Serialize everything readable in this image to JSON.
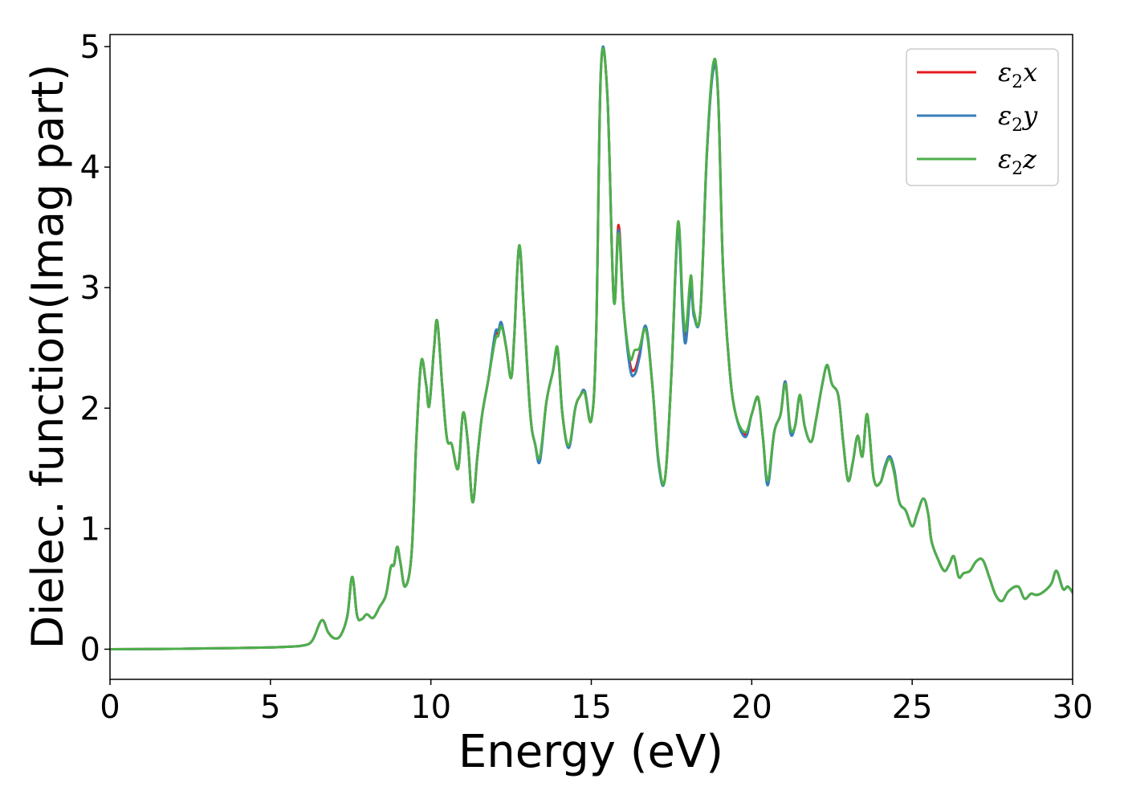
{
  "chart_data": {
    "type": "line",
    "title": "",
    "xlabel": "Energy (eV)",
    "ylabel": "Dielec. function(Imag part)",
    "xlim": [
      0,
      30
    ],
    "ylim": [
      -0.25,
      5.1
    ],
    "xticks": [
      0,
      5,
      10,
      15,
      20,
      25,
      30
    ],
    "xtick_labels": [
      "0",
      "5",
      "10",
      "15",
      "20",
      "25",
      "30"
    ],
    "yticks": [
      0,
      1,
      2,
      3,
      4,
      5
    ],
    "ytick_labels": [
      "0",
      "1",
      "2",
      "3",
      "4",
      "5"
    ],
    "grid": false,
    "legend_position": "top-right",
    "series": [
      {
        "name": "ε2x",
        "legend_base": "ε",
        "legend_sub": "2",
        "legend_tail": "x",
        "color": "#e41a1c",
        "x": [
          0,
          2,
          4,
          5,
          5.5,
          6,
          6.3,
          6.6,
          6.8,
          7.0,
          7.2,
          7.4,
          7.55,
          7.7,
          7.85,
          8.0,
          8.2,
          8.4,
          8.6,
          8.75,
          8.85,
          8.95,
          9.05,
          9.2,
          9.4,
          9.55,
          9.7,
          9.85,
          9.95,
          10.1,
          10.2,
          10.35,
          10.5,
          10.65,
          10.85,
          11.0,
          11.15,
          11.3,
          11.45,
          11.6,
          11.8,
          12.0,
          12.1,
          12.2,
          12.35,
          12.5,
          12.6,
          12.75,
          12.9,
          13.1,
          13.25,
          13.4,
          13.6,
          13.8,
          13.95,
          14.1,
          14.3,
          14.5,
          14.65,
          14.8,
          15.0,
          15.15,
          15.3,
          15.5,
          15.7,
          15.85,
          16.0,
          16.2,
          16.35,
          16.5,
          16.7,
          16.9,
          17.1,
          17.3,
          17.5,
          17.7,
          17.85,
          17.95,
          18.1,
          18.2,
          18.4,
          18.6,
          18.8,
          18.95,
          19.1,
          19.3,
          19.5,
          19.8,
          20.0,
          20.2,
          20.35,
          20.5,
          20.7,
          20.9,
          21.05,
          21.2,
          21.35,
          21.5,
          21.65,
          21.85,
          22.0,
          22.2,
          22.35,
          22.5,
          22.7,
          22.85,
          23.0,
          23.15,
          23.3,
          23.45,
          23.6,
          23.8,
          24.0,
          24.15,
          24.3,
          24.45,
          24.6,
          24.8,
          25.0,
          25.15,
          25.35,
          25.5,
          25.6,
          25.8,
          26.0,
          26.15,
          26.3,
          26.45,
          26.6,
          26.8,
          27.0,
          27.2,
          27.4,
          27.6,
          27.8,
          28.0,
          28.3,
          28.5,
          28.7,
          28.85,
          29.0,
          29.2,
          29.35,
          29.5,
          29.7,
          29.85,
          30.0
        ],
        "y": [
          0,
          0.003,
          0.01,
          0.015,
          0.02,
          0.03,
          0.07,
          0.24,
          0.14,
          0.09,
          0.12,
          0.28,
          0.6,
          0.28,
          0.25,
          0.29,
          0.26,
          0.35,
          0.45,
          0.68,
          0.7,
          0.85,
          0.72,
          0.52,
          0.8,
          1.75,
          2.38,
          2.2,
          2.02,
          2.5,
          2.72,
          2.2,
          1.75,
          1.7,
          1.5,
          1.95,
          1.72,
          1.22,
          1.6,
          1.95,
          2.25,
          2.6,
          2.62,
          2.7,
          2.5,
          2.25,
          2.6,
          3.34,
          2.8,
          1.95,
          1.7,
          1.58,
          2.05,
          2.3,
          2.48,
          1.95,
          1.68,
          2.0,
          2.1,
          2.12,
          1.9,
          2.6,
          4.8,
          4.6,
          2.9,
          3.52,
          2.85,
          2.38,
          2.32,
          2.45,
          2.67,
          2.2,
          1.55,
          1.42,
          2.3,
          3.5,
          2.8,
          2.6,
          3.05,
          2.78,
          2.8,
          4.1,
          4.82,
          4.6,
          3.2,
          2.35,
          1.95,
          1.78,
          1.95,
          2.08,
          1.75,
          1.38,
          1.8,
          1.95,
          2.22,
          1.82,
          1.85,
          2.1,
          1.85,
          1.72,
          1.9,
          2.2,
          2.35,
          2.2,
          2.1,
          1.72,
          1.4,
          1.55,
          1.77,
          1.6,
          1.94,
          1.42,
          1.38,
          1.5,
          1.6,
          1.45,
          1.22,
          1.15,
          1.02,
          1.12,
          1.25,
          1.12,
          0.9,
          0.75,
          0.65,
          0.7,
          0.77,
          0.6,
          0.63,
          0.65,
          0.73,
          0.74,
          0.6,
          0.45,
          0.4,
          0.48,
          0.52,
          0.42,
          0.46,
          0.45,
          0.46,
          0.5,
          0.55,
          0.65,
          0.5,
          0.52,
          0.47
        ]
      },
      {
        "name": "ε2y",
        "legend_base": "ε",
        "legend_sub": "2",
        "legend_tail": "y",
        "color": "#377eb8",
        "x": [
          0,
          2,
          4,
          5,
          5.5,
          6,
          6.3,
          6.6,
          6.8,
          7.0,
          7.2,
          7.4,
          7.55,
          7.7,
          7.85,
          8.0,
          8.2,
          8.4,
          8.6,
          8.75,
          8.85,
          8.95,
          9.05,
          9.2,
          9.4,
          9.55,
          9.7,
          9.85,
          9.95,
          10.1,
          10.2,
          10.35,
          10.5,
          10.65,
          10.85,
          11.0,
          11.15,
          11.3,
          11.45,
          11.6,
          11.8,
          12.0,
          12.1,
          12.2,
          12.35,
          12.5,
          12.6,
          12.75,
          12.9,
          13.1,
          13.25,
          13.4,
          13.6,
          13.8,
          13.95,
          14.1,
          14.3,
          14.5,
          14.65,
          14.8,
          15.0,
          15.15,
          15.3,
          15.5,
          15.7,
          15.85,
          16.0,
          16.2,
          16.35,
          16.5,
          16.7,
          16.9,
          17.1,
          17.3,
          17.5,
          17.7,
          17.85,
          17.95,
          18.1,
          18.2,
          18.4,
          18.6,
          18.8,
          18.95,
          19.1,
          19.3,
          19.5,
          19.8,
          20.0,
          20.2,
          20.35,
          20.5,
          20.7,
          20.9,
          21.05,
          21.2,
          21.35,
          21.5,
          21.65,
          21.85,
          22.0,
          22.2,
          22.35,
          22.5,
          22.7,
          22.85,
          23.0,
          23.15,
          23.3,
          23.45,
          23.6,
          23.8,
          24.0,
          24.15,
          24.3,
          24.45,
          24.6,
          24.8,
          25.0,
          25.15,
          25.35,
          25.5,
          25.6,
          25.8,
          26.0,
          26.15,
          26.3,
          26.45,
          26.6,
          26.8,
          27.0,
          27.2,
          27.4,
          27.6,
          27.8,
          28.0,
          28.3,
          28.5,
          28.7,
          28.85,
          29.0,
          29.2,
          29.35,
          29.5,
          29.7,
          29.85,
          30.0
        ],
        "y": [
          0,
          0.003,
          0.01,
          0.015,
          0.02,
          0.03,
          0.07,
          0.24,
          0.14,
          0.09,
          0.12,
          0.28,
          0.6,
          0.28,
          0.25,
          0.29,
          0.26,
          0.35,
          0.45,
          0.68,
          0.7,
          0.85,
          0.72,
          0.52,
          0.8,
          1.75,
          2.38,
          2.2,
          2.02,
          2.5,
          2.72,
          2.2,
          1.75,
          1.7,
          1.5,
          1.95,
          1.72,
          1.22,
          1.6,
          1.95,
          2.25,
          2.62,
          2.64,
          2.71,
          2.5,
          2.25,
          2.6,
          3.34,
          2.8,
          1.95,
          1.7,
          1.56,
          2.05,
          2.3,
          2.48,
          1.95,
          1.67,
          2.0,
          2.1,
          2.14,
          1.9,
          2.6,
          4.82,
          4.6,
          2.9,
          3.48,
          2.85,
          2.34,
          2.28,
          2.42,
          2.68,
          2.2,
          1.53,
          1.42,
          2.3,
          3.48,
          2.75,
          2.55,
          3.0,
          2.76,
          2.8,
          4.1,
          4.8,
          4.6,
          3.2,
          2.35,
          1.95,
          1.76,
          1.95,
          2.08,
          1.75,
          1.36,
          1.8,
          1.95,
          2.22,
          1.8,
          1.85,
          2.1,
          1.85,
          1.72,
          1.9,
          2.2,
          2.35,
          2.2,
          2.1,
          1.72,
          1.4,
          1.55,
          1.77,
          1.6,
          1.94,
          1.42,
          1.38,
          1.52,
          1.6,
          1.48,
          1.22,
          1.15,
          1.02,
          1.12,
          1.25,
          1.12,
          0.9,
          0.75,
          0.65,
          0.7,
          0.77,
          0.6,
          0.63,
          0.65,
          0.73,
          0.74,
          0.6,
          0.45,
          0.4,
          0.48,
          0.52,
          0.42,
          0.46,
          0.45,
          0.46,
          0.5,
          0.55,
          0.65,
          0.5,
          0.52,
          0.47
        ]
      },
      {
        "name": "ε2z",
        "legend_base": "ε",
        "legend_sub": "2",
        "legend_tail": "z",
        "color": "#4daf4a",
        "x": [
          0,
          2,
          4,
          5,
          5.5,
          6,
          6.3,
          6.6,
          6.8,
          7.0,
          7.2,
          7.4,
          7.55,
          7.7,
          7.85,
          8.0,
          8.2,
          8.4,
          8.6,
          8.75,
          8.85,
          8.95,
          9.05,
          9.2,
          9.4,
          9.55,
          9.7,
          9.85,
          9.95,
          10.1,
          10.2,
          10.35,
          10.5,
          10.65,
          10.85,
          11.0,
          11.15,
          11.3,
          11.45,
          11.6,
          11.8,
          12.0,
          12.1,
          12.2,
          12.35,
          12.5,
          12.6,
          12.75,
          12.9,
          13.1,
          13.25,
          13.4,
          13.6,
          13.8,
          13.95,
          14.1,
          14.3,
          14.5,
          14.65,
          14.8,
          15.0,
          15.15,
          15.3,
          15.5,
          15.7,
          15.85,
          16.0,
          16.2,
          16.35,
          16.5,
          16.7,
          16.9,
          17.1,
          17.3,
          17.5,
          17.7,
          17.85,
          17.95,
          18.1,
          18.2,
          18.4,
          18.6,
          18.8,
          18.95,
          19.1,
          19.3,
          19.5,
          19.8,
          20.0,
          20.2,
          20.35,
          20.5,
          20.7,
          20.9,
          21.05,
          21.2,
          21.35,
          21.5,
          21.65,
          21.85,
          22.0,
          22.2,
          22.35,
          22.5,
          22.7,
          22.85,
          23.0,
          23.15,
          23.3,
          23.45,
          23.6,
          23.8,
          24.0,
          24.15,
          24.3,
          24.45,
          24.6,
          24.8,
          25.0,
          25.15,
          25.35,
          25.5,
          25.6,
          25.8,
          26.0,
          26.15,
          26.3,
          26.45,
          26.6,
          26.8,
          27.0,
          27.2,
          27.4,
          27.6,
          27.8,
          28.0,
          28.3,
          28.5,
          28.7,
          28.85,
          29.0,
          29.2,
          29.35,
          29.5,
          29.7,
          29.85,
          30.0
        ],
        "y": [
          0,
          0.003,
          0.01,
          0.015,
          0.02,
          0.03,
          0.07,
          0.24,
          0.14,
          0.09,
          0.12,
          0.28,
          0.6,
          0.28,
          0.25,
          0.29,
          0.26,
          0.35,
          0.45,
          0.68,
          0.7,
          0.85,
          0.72,
          0.52,
          0.8,
          1.75,
          2.39,
          2.2,
          2.02,
          2.5,
          2.72,
          2.2,
          1.75,
          1.7,
          1.5,
          1.96,
          1.72,
          1.22,
          1.6,
          1.95,
          2.25,
          2.56,
          2.6,
          2.68,
          2.5,
          2.25,
          2.6,
          3.35,
          2.8,
          1.95,
          1.7,
          1.6,
          2.05,
          2.3,
          2.5,
          1.95,
          1.69,
          2.0,
          2.1,
          2.12,
          1.9,
          2.6,
          4.8,
          4.6,
          2.9,
          3.45,
          2.85,
          2.42,
          2.48,
          2.5,
          2.65,
          2.2,
          1.56,
          1.42,
          2.3,
          3.54,
          2.85,
          2.65,
          3.1,
          2.8,
          2.8,
          4.12,
          4.86,
          4.6,
          3.2,
          2.35,
          1.95,
          1.8,
          1.95,
          2.09,
          1.75,
          1.4,
          1.8,
          1.95,
          2.2,
          1.84,
          1.85,
          2.11,
          1.85,
          1.72,
          1.9,
          2.2,
          2.36,
          2.2,
          2.1,
          1.72,
          1.4,
          1.55,
          1.77,
          1.6,
          1.95,
          1.42,
          1.38,
          1.5,
          1.58,
          1.45,
          1.22,
          1.15,
          1.02,
          1.12,
          1.25,
          1.12,
          0.9,
          0.75,
          0.65,
          0.7,
          0.77,
          0.6,
          0.63,
          0.65,
          0.73,
          0.74,
          0.6,
          0.45,
          0.4,
          0.48,
          0.52,
          0.42,
          0.46,
          0.45,
          0.46,
          0.5,
          0.55,
          0.65,
          0.5,
          0.52,
          0.47
        ]
      }
    ]
  }
}
